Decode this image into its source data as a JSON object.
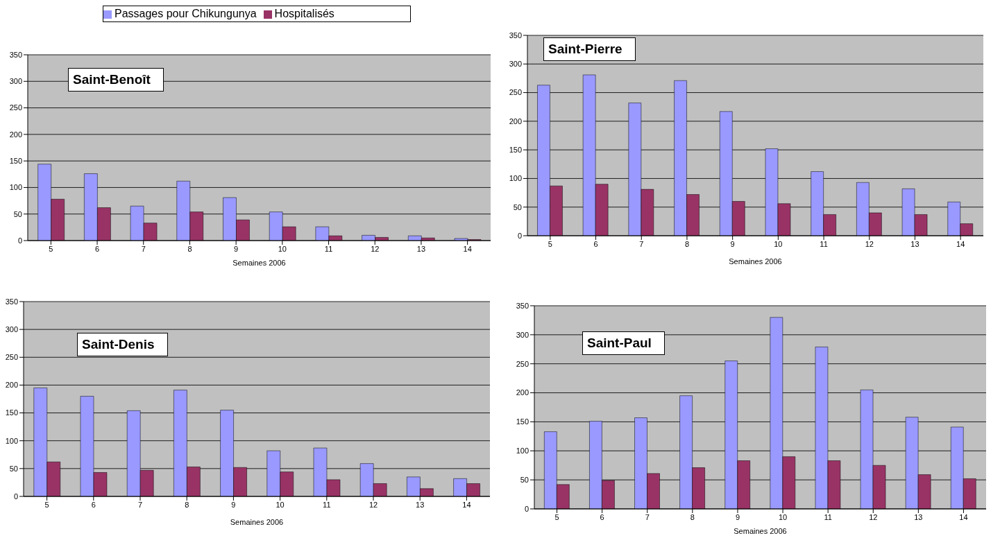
{
  "chart_data": [
    {
      "type": "bar",
      "title": "Saint-Benoît",
      "xlabel": "Semaines 2006",
      "categories": [
        "5",
        "6",
        "7",
        "8",
        "9",
        "10",
        "11",
        "12",
        "13",
        "14"
      ],
      "ylim": [
        0,
        350
      ],
      "yticks": [
        0,
        50,
        100,
        150,
        200,
        250,
        300,
        350
      ],
      "grid": "y",
      "legend": "top",
      "series": [
        {
          "name": "Passages pour Chikungunya",
          "color": "#9999ff",
          "values": [
            144,
            126,
            65,
            112,
            81,
            54,
            26,
            10,
            9,
            4
          ]
        },
        {
          "name": "Hospitalisés",
          "color": "#993366",
          "values": [
            78,
            62,
            33,
            54,
            39,
            26,
            9,
            6,
            5,
            2
          ]
        }
      ]
    },
    {
      "type": "bar",
      "title": "Saint-Pierre",
      "xlabel": "Semaines 2006",
      "categories": [
        "5",
        "6",
        "7",
        "8",
        "9",
        "10",
        "11",
        "12",
        "13",
        "14"
      ],
      "ylim": [
        0,
        350
      ],
      "yticks": [
        0,
        50,
        100,
        150,
        200,
        250,
        300,
        350
      ],
      "grid": "y",
      "series": [
        {
          "color": "#9999ff",
          "values": [
            263,
            281,
            232,
            271,
            217,
            152,
            112,
            93,
            82,
            59
          ]
        },
        {
          "color": "#993366",
          "values": [
            87,
            90,
            81,
            72,
            60,
            56,
            37,
            40,
            37,
            21
          ]
        }
      ]
    },
    {
      "type": "bar",
      "title": "Saint-Denis",
      "xlabel": "Semaines 2006",
      "categories": [
        "5",
        "6",
        "7",
        "8",
        "9",
        "10",
        "11",
        "12",
        "13",
        "14"
      ],
      "ylim": [
        0,
        350
      ],
      "yticks": [
        0,
        50,
        100,
        150,
        200,
        250,
        300,
        350
      ],
      "grid": "y",
      "series": [
        {
          "color": "#9999ff",
          "values": [
            195,
            180,
            154,
            191,
            155,
            82,
            87,
            59,
            35,
            32
          ]
        },
        {
          "color": "#993366",
          "values": [
            62,
            43,
            47,
            53,
            52,
            44,
            30,
            23,
            14,
            23
          ]
        }
      ]
    },
    {
      "type": "bar",
      "title": "Saint-Paul",
      "xlabel": "Semaines 2006",
      "categories": [
        "5",
        "6",
        "7",
        "8",
        "9",
        "10",
        "11",
        "12",
        "13",
        "14"
      ],
      "ylim": [
        0,
        350
      ],
      "yticks": [
        0,
        50,
        100,
        150,
        200,
        250,
        300,
        350
      ],
      "grid": "y",
      "series": [
        {
          "color": "#9999ff",
          "values": [
            133,
            151,
            157,
            195,
            255,
            330,
            279,
            205,
            158,
            141
          ]
        },
        {
          "color": "#993366",
          "values": [
            42,
            49,
            61,
            71,
            83,
            90,
            83,
            75,
            59,
            52
          ]
        }
      ]
    }
  ]
}
